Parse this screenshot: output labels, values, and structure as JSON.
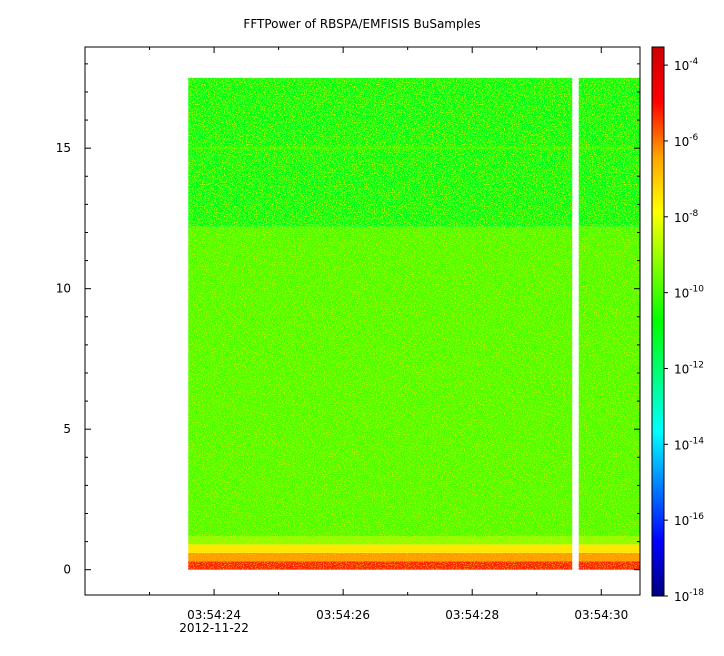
{
  "chart_data": {
    "type": "heatmap",
    "title": "FFTPower of RBSPA/EMFISIS  BuSamples",
    "xlabel": "",
    "ylabel": "",
    "x_ticks": [
      {
        "value": 24,
        "label": "03:54:24"
      },
      {
        "value": 26,
        "label": "03:54:26"
      },
      {
        "value": 28,
        "label": "03:54:28"
      },
      {
        "value": 30,
        "label": "03:54:30"
      }
    ],
    "x_date_label": "2012-11-22",
    "xlim": [
      22.0,
      30.6
    ],
    "x_data_range": [
      23.6,
      30.6
    ],
    "data_gap": [
      29.55,
      29.65
    ],
    "y_ticks": [
      0,
      5,
      10,
      15
    ],
    "ylim": [
      -0.9,
      18.6
    ],
    "y_data_range": [
      0.0,
      17.5
    ],
    "colorbar": {
      "scale": "log",
      "range": [
        1e-18,
        0.0003
      ],
      "ticks": [
        {
          "base": "10",
          "exp": "-4",
          "value": 0.0001
        },
        {
          "base": "10",
          "exp": "-6",
          "value": 1e-06
        },
        {
          "base": "10",
          "exp": "-8",
          "value": 1e-08
        },
        {
          "base": "10",
          "exp": "-10",
          "value": 1e-10
        },
        {
          "base": "10",
          "exp": "-12",
          "value": 1e-12
        },
        {
          "base": "10",
          "exp": "-14",
          "value": 1e-14
        },
        {
          "base": "10",
          "exp": "-16",
          "value": 1e-16
        },
        {
          "base": "10",
          "exp": "-18",
          "value": 1e-18
        }
      ]
    },
    "bands": [
      {
        "y": [
          0.0,
          0.3
        ],
        "log_power": -5.2
      },
      {
        "y": [
          0.3,
          0.6
        ],
        "log_power": -6.3
      },
      {
        "y": [
          0.6,
          0.9
        ],
        "log_power": -7.5
      },
      {
        "y": [
          0.9,
          1.2
        ],
        "log_power": -9.2
      },
      {
        "y": [
          1.2,
          12.2
        ],
        "log_power": -9.9
      },
      {
        "y": [
          12.2,
          17.5
        ],
        "log_power": -11.0
      },
      {
        "y": [
          14.96,
          15.06
        ],
        "log_power": -10.2
      }
    ],
    "colormap": [
      "#00007f",
      "#0000ff",
      "#007fff",
      "#00ffff",
      "#00ff80",
      "#00ff00",
      "#80ff00",
      "#ffff00",
      "#ffa500",
      "#ff0000",
      "#cc0000"
    ]
  }
}
